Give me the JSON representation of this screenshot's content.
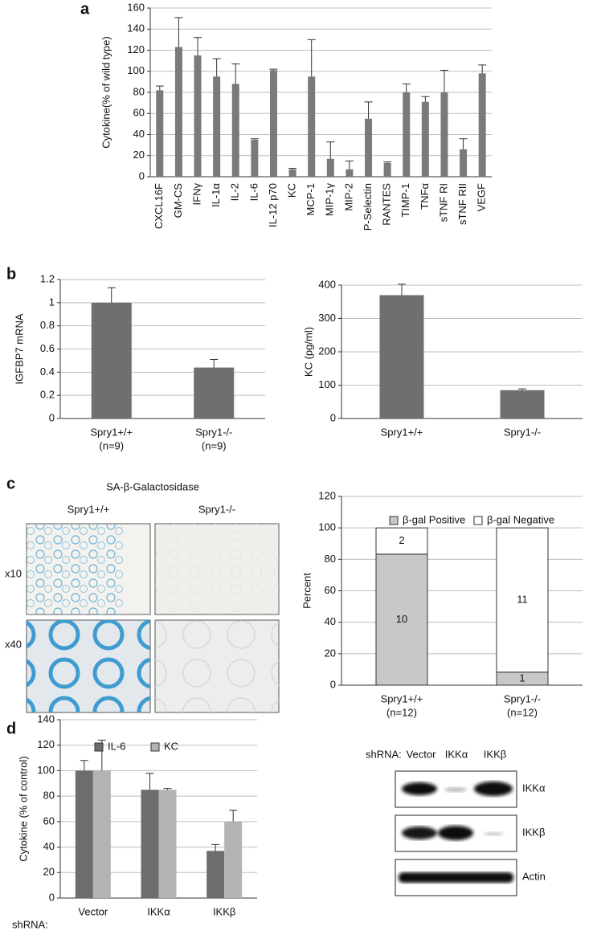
{
  "panel_labels": [
    "a",
    "b",
    "c",
    "d"
  ],
  "chart_data": [
    {
      "type": "bar",
      "y_label": "Cytokine(% of wild type)",
      "categories": [
        "CXCL16F",
        "GM-CS",
        "IFNγ",
        "IL-1α",
        "IL-2",
        "IL-6",
        "IL-12 p70",
        "KC",
        "MCP-1",
        "MIP-1γ",
        "MIP-2",
        "P-Selectin",
        "RANTES",
        "TIMP-1",
        "TNFα",
        "sTNF RI",
        "sTNF RII",
        "VEGF"
      ],
      "values": [
        82,
        123,
        115,
        95,
        88,
        35,
        101,
        7,
        95,
        17,
        7,
        55,
        13,
        80,
        71,
        80,
        26,
        98
      ],
      "errors": [
        4,
        28,
        17,
        17,
        19,
        1,
        1,
        1,
        35,
        16,
        8,
        16,
        1,
        8,
        5,
        21,
        10,
        8
      ],
      "color": "#7a7a7a",
      "ylim": [
        0,
        160
      ],
      "yticks": [
        0,
        20,
        40,
        60,
        80,
        100,
        120,
        140,
        160
      ],
      "grid": true
    },
    {
      "type": "bar",
      "y_label": "IGFBP7 mRNA",
      "categories": [
        "Spry1+/+",
        "Spry1-/-"
      ],
      "sample_sizes": [
        "(n=9)",
        "(n=9)"
      ],
      "values": [
        1,
        0.44
      ],
      "errors": [
        0.13,
        0.07
      ],
      "color": "#6f6f6f",
      "ylim": [
        0,
        1.2
      ],
      "yticks": [
        0,
        0.2,
        0.4,
        0.6,
        0.8,
        1,
        1.2
      ],
      "grid": true
    },
    {
      "type": "bar",
      "y_label": "KC (pg/ml)",
      "categories": [
        "Spry1+/+",
        "Spry1-/-"
      ],
      "values": [
        370,
        85
      ],
      "errors": [
        33,
        4
      ],
      "color": "#6f6f6f",
      "ylim": [
        0,
        400
      ],
      "yticks": [
        0,
        100,
        200,
        300,
        400
      ],
      "grid": true
    },
    {
      "type": "stacked_bar",
      "y_label": "Percent",
      "categories": [
        "Spry1+/+",
        "Spry1-/-"
      ],
      "sample_sizes": [
        "(n=12)",
        "(n=12)"
      ],
      "series": [
        {
          "name": "β-gal Positive",
          "color": "#c8c8c8",
          "values": [
            83.3,
            8.3
          ],
          "counts": [
            10,
            1
          ]
        },
        {
          "name": "β-gal Negative",
          "color": "#ffffff",
          "values": [
            16.7,
            91.7
          ],
          "counts": [
            2,
            11
          ]
        }
      ],
      "ylim": [
        0,
        120
      ],
      "yticks": [
        0,
        20,
        40,
        60,
        80,
        100,
        120
      ],
      "grid": true,
      "legend": "top"
    },
    {
      "type": "grouped_bar",
      "y_label": "Cytokine (% of control)",
      "x_label": "shRNA:",
      "categories": [
        "Vector",
        "IKKα",
        "IKKβ"
      ],
      "series": [
        {
          "name": "IL-6",
          "color": "#6d6d6d",
          "values": [
            100,
            85,
            37
          ],
          "errors": [
            8,
            13,
            5
          ]
        },
        {
          "name": "KC",
          "color": "#b3b3b3",
          "values": [
            100,
            85,
            60
          ],
          "errors": [
            24,
            1,
            9
          ]
        }
      ],
      "ylim": [
        0,
        140
      ],
      "yticks": [
        0,
        20,
        40,
        60,
        80,
        100,
        120,
        140
      ],
      "grid": true,
      "legend": "top"
    }
  ],
  "staining": {
    "title": "SA-β-Galactosidase",
    "columns": [
      "Spry1+/+",
      "Spry1-/-"
    ],
    "rows": [
      "x10",
      "x40"
    ]
  },
  "blot": {
    "label": "shRNA:",
    "lanes": [
      "Vector",
      "IKKα",
      "IKKβ"
    ],
    "rows": [
      "IKKα",
      "IKKβ",
      "Actin"
    ]
  }
}
